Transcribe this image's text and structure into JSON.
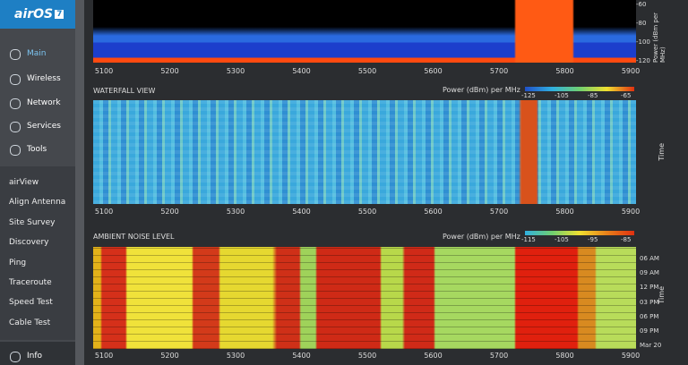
{
  "sidebar": {
    "logo": "airOS",
    "version": "7",
    "nav": [
      "Main",
      "Wireless",
      "Network",
      "Services",
      "Tools"
    ],
    "tools": [
      "airView",
      "Align Antenna",
      "Site Survey",
      "Discovery",
      "Ping",
      "Traceroute",
      "Speed Test",
      "Cable Test"
    ],
    "footer": "Info"
  },
  "spectrum": {
    "y_labels": [
      "-60",
      "-80",
      "-100",
      "-120"
    ],
    "y_axis": "Power (dBm per MHz)",
    "x_ticks": [
      "5100",
      "5200",
      "5300",
      "5400",
      "5500",
      "5600",
      "5700",
      "5800",
      "5900"
    ]
  },
  "waterfall": {
    "title": "WATERFALL VIEW",
    "legend_title": "Power (dBm) per MHz",
    "legend_ticks": [
      "-125",
      "-105",
      "-85",
      "-65"
    ],
    "y_axis": "Time",
    "x_ticks": [
      "5100",
      "5200",
      "5300",
      "5400",
      "5500",
      "5600",
      "5700",
      "5800",
      "5900"
    ]
  },
  "ambient": {
    "title": "AMBIENT NOISE LEVEL",
    "legend_title": "Power (dBm) per MHz",
    "legend_ticks": [
      "-115",
      "-105",
      "-95",
      "-85"
    ],
    "y_axis": "Time",
    "y_labels": [
      "06 AM",
      "09 AM",
      "12 PM",
      "03 PM",
      "06 PM",
      "09 PM",
      "Mar 20"
    ],
    "x_ticks": [
      "5100",
      "5200",
      "5300",
      "5400",
      "5500",
      "5600",
      "5700",
      "5800",
      "5900"
    ]
  }
}
